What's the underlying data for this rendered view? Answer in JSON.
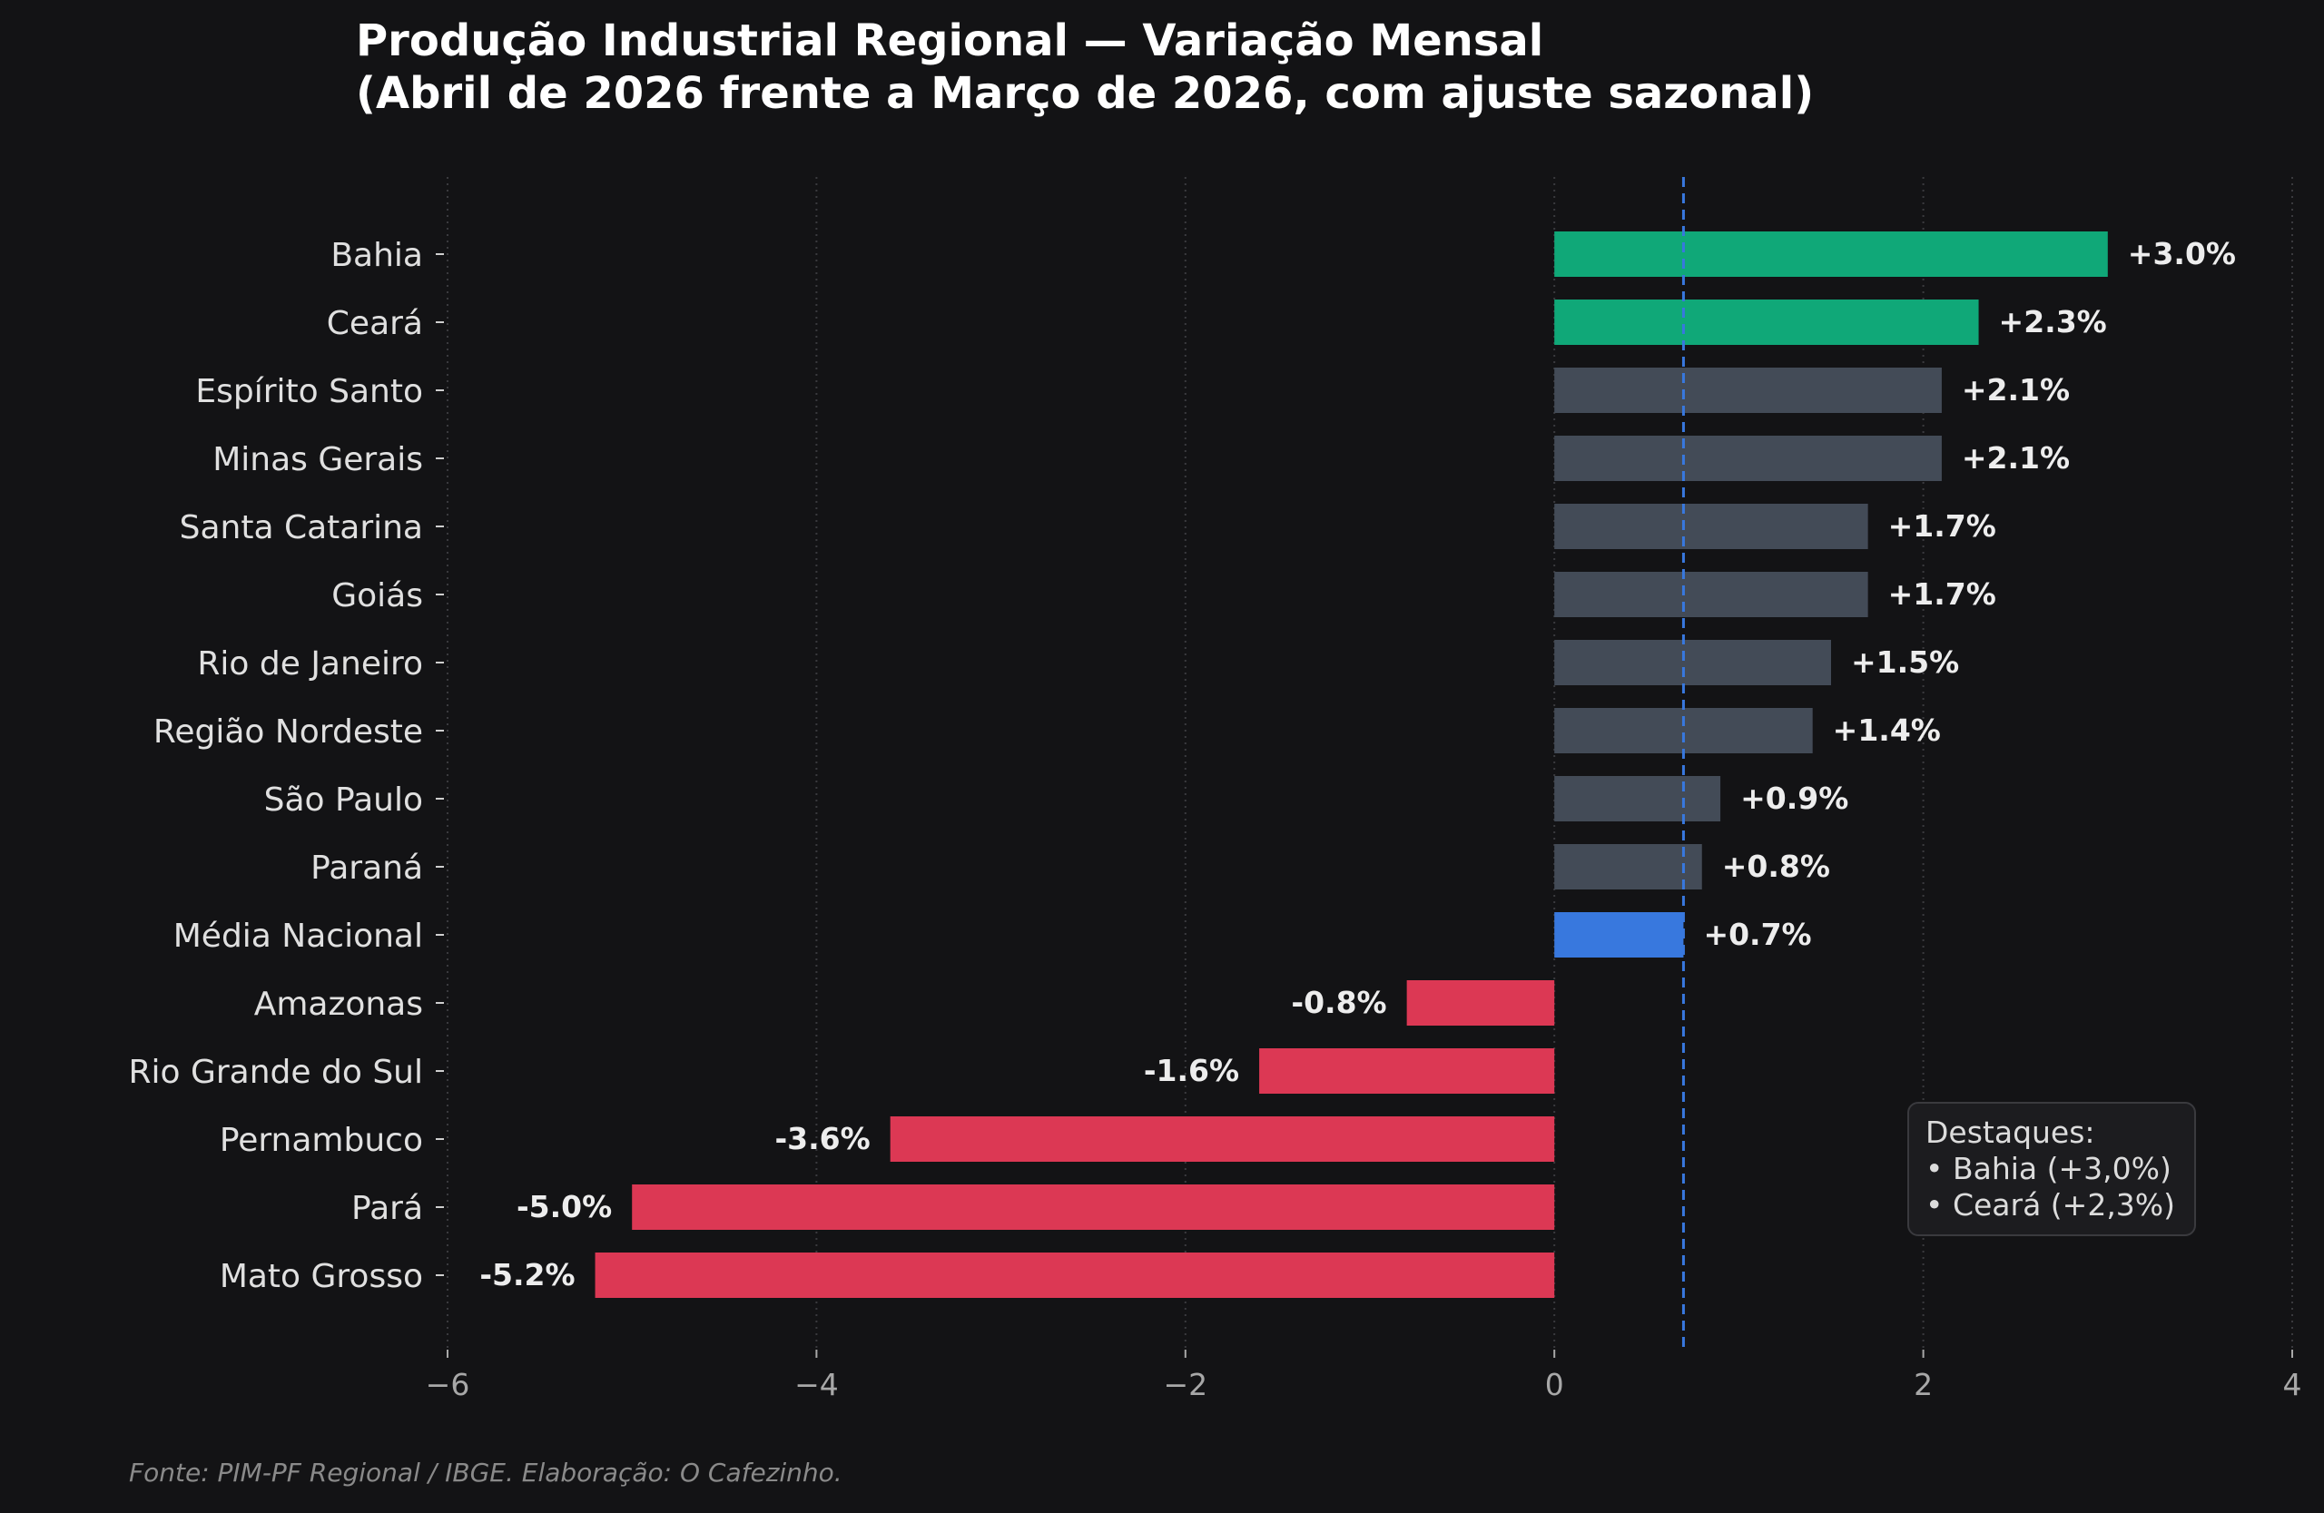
{
  "chart_data": {
    "type": "bar",
    "orientation": "horizontal",
    "title": [
      "Produção Industrial Regional — Variação Mensal",
      "(Abril de 2026 frente a Março de 2026, com ajuste sazonal)"
    ],
    "categories": [
      "Bahia",
      "Ceará",
      "Espírito Santo",
      "Minas Gerais",
      "Santa Catarina",
      "Goiás",
      "Rio de Janeiro",
      "Região Nordeste",
      "São Paulo",
      "Paraná",
      "Média Nacional",
      "Amazonas",
      "Rio Grande do Sul",
      "Pernambuco",
      "Pará",
      "Mato Grosso"
    ],
    "values": [
      3.0,
      2.3,
      2.1,
      2.1,
      1.7,
      1.7,
      1.5,
      1.4,
      0.9,
      0.8,
      0.7,
      -0.8,
      -1.6,
      -3.6,
      -5.0,
      -5.2
    ],
    "value_labels": [
      "+3.0%",
      "+2.3%",
      "+2.1%",
      "+2.1%",
      "+1.7%",
      "+1.7%",
      "+1.5%",
      "+1.4%",
      "+0.9%",
      "+0.8%",
      "+0.7%",
      "-0.8%",
      "-1.6%",
      "-3.6%",
      "-5.0%",
      "-5.2%"
    ],
    "bar_colors": [
      "#10a878",
      "#10a878",
      "#434b57",
      "#434b57",
      "#434b57",
      "#434b57",
      "#434b57",
      "#434b57",
      "#434b57",
      "#434b57",
      "#3878de",
      "#dc3854",
      "#dc3854",
      "#dc3854",
      "#dc3854",
      "#dc3854"
    ],
    "xlim": [
      -6,
      4
    ],
    "x_ticks": [
      -6,
      -4,
      -2,
      0,
      2,
      4
    ],
    "x_tick_labels": [
      "−6",
      "−4",
      "−2",
      "0",
      "2",
      "4"
    ],
    "reference_line": {
      "x": 0.7,
      "style": "dashed",
      "color": "#3878de"
    },
    "grid": "vertical dotted",
    "xlabel": "",
    "ylabel": "",
    "annotation": {
      "lines": [
        "Destaques:",
        "• Bahia (+3,0%)",
        "• Ceará (+2,3%)"
      ],
      "placement": "lower-right"
    },
    "source": "Fonte: PIM-PF Regional / IBGE. Elaboração: O Cafezinho."
  },
  "colors": {
    "background": "#131315",
    "grid": "#3a3a3e",
    "neutral_bar": "#434b57",
    "positive_highlight": "#10a878",
    "national_average": "#3878de",
    "negative": "#dc3854"
  }
}
